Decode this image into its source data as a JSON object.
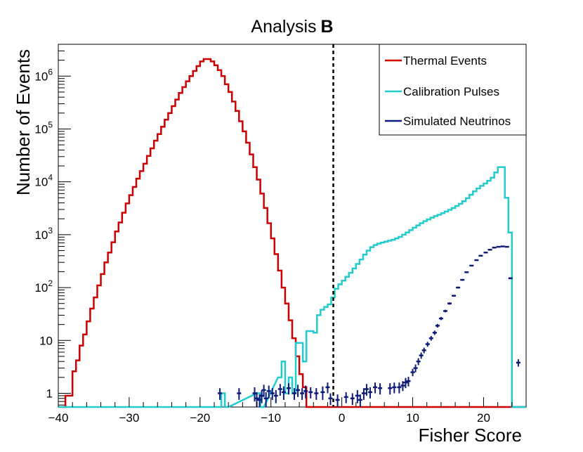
{
  "chart_data": {
    "type": "histogram",
    "title": {
      "main": "Analysis",
      "bold": "B"
    },
    "xlabel": "Fisher Score",
    "ylabel": "Number of Events",
    "xlim": [
      -40,
      26
    ],
    "ylim": [
      0.55,
      4000000
    ],
    "yscale": "log",
    "x_ticks": [
      {
        "value": -40,
        "label": "−40"
      },
      {
        "value": -30,
        "label": "−30"
      },
      {
        "value": -20,
        "label": "−20"
      },
      {
        "value": -10,
        "label": "−10"
      },
      {
        "value": 0,
        "label": "0"
      },
      {
        "value": 10,
        "label": "10"
      },
      {
        "value": 20,
        "label": "20"
      }
    ],
    "y_ticks": [
      {
        "value": 1,
        "base": "1",
        "exp": ""
      },
      {
        "value": 10,
        "base": "10",
        "exp": ""
      },
      {
        "value": 100,
        "base": "10",
        "exp": "2"
      },
      {
        "value": 1000,
        "base": "10",
        "exp": "3"
      },
      {
        "value": 10000,
        "base": "10",
        "exp": "4"
      },
      {
        "value": 100000,
        "base": "10",
        "exp": "5"
      },
      {
        "value": 1000000,
        "base": "10",
        "exp": "6"
      }
    ],
    "cut_line_x": -1.2,
    "legend_position": "top-right",
    "series": [
      {
        "name": "Thermal Events",
        "color": "#cc0000",
        "style": "step",
        "bins": [
          [
            -39.5,
            0.5
          ],
          [
            -39,
            0.9
          ],
          [
            -38.5,
            0.9
          ],
          [
            -38,
            2.6
          ],
          [
            -37.5,
            4.2
          ],
          [
            -37,
            8
          ],
          [
            -36.5,
            13
          ],
          [
            -36,
            23
          ],
          [
            -35.5,
            40
          ],
          [
            -35,
            65
          ],
          [
            -34.5,
            110
          ],
          [
            -34,
            180
          ],
          [
            -33.5,
            300
          ],
          [
            -33,
            460
          ],
          [
            -32.5,
            720
          ],
          [
            -32,
            1150
          ],
          [
            -31.5,
            1700
          ],
          [
            -31,
            2600
          ],
          [
            -30.5,
            3900
          ],
          [
            -30,
            5600
          ],
          [
            -29.5,
            8000
          ],
          [
            -29,
            11500
          ],
          [
            -28.5,
            16000
          ],
          [
            -28,
            22000
          ],
          [
            -27.5,
            31000
          ],
          [
            -27,
            43000
          ],
          [
            -26.5,
            60000
          ],
          [
            -26,
            80000
          ],
          [
            -25.5,
            110000
          ],
          [
            -25,
            150000
          ],
          [
            -24.5,
            200000
          ],
          [
            -24,
            270000
          ],
          [
            -23.5,
            360000
          ],
          [
            -23,
            480000
          ],
          [
            -22.5,
            620000
          ],
          [
            -22,
            800000
          ],
          [
            -21.5,
            1000000
          ],
          [
            -21,
            1250000
          ],
          [
            -20.5,
            1550000
          ],
          [
            -20,
            1900000
          ],
          [
            -19.5,
            2100000
          ],
          [
            -19,
            2100000
          ],
          [
            -18.5,
            1900000
          ],
          [
            -18,
            1600000
          ],
          [
            -17.5,
            1300000
          ],
          [
            -17,
            1000000
          ],
          [
            -16.5,
            700000
          ],
          [
            -16,
            500000
          ],
          [
            -15.5,
            330000
          ],
          [
            -15,
            220000
          ],
          [
            -14.5,
            140000
          ],
          [
            -14,
            90000
          ],
          [
            -13.5,
            55000
          ],
          [
            -13,
            33000
          ],
          [
            -12.5,
            19000
          ],
          [
            -12,
            11000
          ],
          [
            -11.5,
            6000
          ],
          [
            -11,
            3200
          ],
          [
            -10.5,
            1650
          ],
          [
            -10,
            850
          ],
          [
            -9.5,
            430
          ],
          [
            -9,
            210
          ],
          [
            -8.5,
            100
          ],
          [
            -8,
            50
          ],
          [
            -7.5,
            24
          ],
          [
            -7,
            11
          ],
          [
            -6.5,
            5
          ],
          [
            -6,
            2.3
          ],
          [
            -5.5,
            1.3
          ],
          [
            -5,
            0.5
          ],
          [
            -4.5,
            0.5
          ],
          [
            -4,
            0.5
          ],
          [
            -3.5,
            0.5
          ],
          [
            -3,
            0.5
          ],
          [
            -2.5,
            0.5
          ],
          [
            -2,
            0.5
          ],
          [
            -1.5,
            0.5
          ],
          [
            -1,
            0.5
          ],
          [
            -0.5,
            0.5
          ],
          [
            0,
            0.5
          ],
          [
            0.5,
            0.5
          ],
          [
            1,
            0.5
          ],
          [
            1.5,
            0.5
          ],
          [
            2,
            0.5
          ],
          [
            2.5,
            0.5
          ],
          [
            3,
            0.5
          ],
          [
            3.5,
            0.5
          ],
          [
            4,
            0.5
          ],
          [
            4.5,
            0.5
          ],
          [
            5,
            0.5
          ],
          [
            5.5,
            0.5
          ],
          [
            6,
            0.5
          ],
          [
            6.5,
            0.5
          ],
          [
            7,
            0.5
          ],
          [
            7.5,
            0.5
          ],
          [
            8,
            0.5
          ],
          [
            8.5,
            0.5
          ],
          [
            9,
            0.5
          ],
          [
            9.5,
            0.5
          ],
          [
            10,
            0.5
          ],
          [
            10.5,
            0.5
          ],
          [
            11,
            0.5
          ],
          [
            11.5,
            0.5
          ],
          [
            12,
            0.5
          ],
          [
            12.5,
            0.5
          ],
          [
            13,
            0.5
          ],
          [
            13.5,
            0.5
          ],
          [
            14,
            0.5
          ],
          [
            14.5,
            0.5
          ],
          [
            15,
            0.5
          ],
          [
            15.5,
            0.5
          ],
          [
            16,
            0.5
          ],
          [
            16.5,
            0.5
          ],
          [
            17,
            0.5
          ],
          [
            17.5,
            0.5
          ],
          [
            18,
            0.5
          ],
          [
            18.5,
            0.5
          ],
          [
            19,
            0.5
          ],
          [
            19.5,
            0.5
          ],
          [
            20,
            0.5
          ],
          [
            20.5,
            0.5
          ],
          [
            21,
            0.5
          ],
          [
            21.5,
            0.5
          ],
          [
            22,
            0.5
          ],
          [
            22.5,
            0.5
          ],
          [
            23,
            0.5
          ],
          [
            23.5,
            0.5
          ],
          [
            24,
            0.5
          ],
          [
            24.5,
            0.5
          ],
          [
            25,
            0.5
          ],
          [
            25.5,
            0.5
          ]
        ],
        "bin_width": 0.5
      },
      {
        "name": "Calibration Pulses",
        "color": "#22cccc",
        "style": "step",
        "bins": [
          [
            -40,
            0.5
          ],
          [
            -17.5,
            0.5
          ],
          [
            -17,
            1
          ],
          [
            -16.5,
            0.5
          ],
          [
            -12,
            1
          ],
          [
            -11.5,
            0.5
          ],
          [
            -9,
            2
          ],
          [
            -8.5,
            4
          ],
          [
            -8,
            1
          ],
          [
            -7.5,
            2
          ],
          [
            -7,
            1
          ],
          [
            -6.5,
            9
          ],
          [
            -6,
            9
          ],
          [
            -5.5,
            4
          ],
          [
            -5,
            15
          ],
          [
            -4.5,
            15
          ],
          [
            -4,
            14
          ],
          [
            -3.5,
            30
          ],
          [
            -3,
            38
          ],
          [
            -2.5,
            43
          ],
          [
            -2,
            48
          ],
          [
            -1.5,
            65
          ],
          [
            -1,
            95
          ],
          [
            -0.5,
            115
          ],
          [
            0,
            135
          ],
          [
            0.5,
            160
          ],
          [
            1,
            190
          ],
          [
            1.5,
            230
          ],
          [
            2,
            280
          ],
          [
            2.5,
            340
          ],
          [
            3,
            420
          ],
          [
            3.5,
            500
          ],
          [
            4,
            580
          ],
          [
            4.5,
            640
          ],
          [
            5,
            680
          ],
          [
            5.5,
            710
          ],
          [
            6,
            740
          ],
          [
            6.5,
            770
          ],
          [
            7,
            800
          ],
          [
            7.5,
            850
          ],
          [
            8,
            910
          ],
          [
            8.5,
            1000
          ],
          [
            9,
            1100
          ],
          [
            9.5,
            1220
          ],
          [
            10,
            1360
          ],
          [
            10.5,
            1500
          ],
          [
            11,
            1650
          ],
          [
            11.5,
            1800
          ],
          [
            12,
            1950
          ],
          [
            12.5,
            2100
          ],
          [
            13,
            2250
          ],
          [
            13.5,
            2380
          ],
          [
            14,
            2550
          ],
          [
            14.5,
            2750
          ],
          [
            15,
            2950
          ],
          [
            15.5,
            3200
          ],
          [
            16,
            3500
          ],
          [
            16.5,
            3850
          ],
          [
            17,
            4300
          ],
          [
            17.5,
            4900
          ],
          [
            18,
            5700
          ],
          [
            18.5,
            6600
          ],
          [
            19,
            7500
          ],
          [
            19.5,
            8400
          ],
          [
            20,
            9300
          ],
          [
            20.5,
            10500
          ],
          [
            21,
            12000
          ],
          [
            21.5,
            15000
          ],
          [
            22,
            19000
          ],
          [
            22.5,
            19000
          ],
          [
            23,
            5000
          ],
          [
            23.5,
            1100
          ],
          [
            24,
            0.5
          ],
          [
            24.5,
            0.5
          ],
          [
            25,
            0.5
          ],
          [
            25.5,
            0.5
          ]
        ],
        "bin_width": 0.5
      },
      {
        "name": "Simulated Neutrinos",
        "color": "#0c1a78",
        "style": "points-with-errors",
        "points": [
          [
            -17.2,
            1.0,
            0.25
          ],
          [
            -14.5,
            1.0,
            0.25
          ],
          [
            -12.3,
            1.0,
            0.3
          ],
          [
            -12.0,
            0.8,
            0.25
          ],
          [
            -11.6,
            0.75,
            0.2
          ],
          [
            -11.3,
            0.9,
            0.25
          ],
          [
            -11.0,
            1.15,
            0.3
          ],
          [
            -10.7,
            0.8,
            0.25
          ],
          [
            -10.3,
            1.1,
            0.3
          ],
          [
            -9.8,
            1.0,
            0.25
          ],
          [
            -9.3,
            0.9,
            0.25
          ],
          [
            -8.7,
            1.2,
            0.3
          ],
          [
            -8.2,
            1.05,
            0.3
          ],
          [
            -7.5,
            1.25,
            0.3
          ],
          [
            -6.7,
            1.0,
            0.25
          ],
          [
            -6.2,
            1.15,
            0.3
          ],
          [
            -5.6,
            1.0,
            0.25
          ],
          [
            -5.1,
            1.1,
            0.3
          ],
          [
            -4.4,
            1.05,
            0.25
          ],
          [
            -3.6,
            1.0,
            0.25
          ],
          [
            -2.7,
            1.05,
            0.3
          ],
          [
            -2.0,
            1.3,
            0.3
          ],
          [
            -1.6,
            0.8,
            0.2
          ],
          [
            -0.6,
            0.75,
            0.2
          ],
          [
            0.6,
            0.85,
            0.2
          ],
          [
            1.5,
            0.8,
            0.2
          ],
          [
            2.2,
            0.9,
            0.25
          ],
          [
            2.6,
            0.75,
            0.2
          ],
          [
            3.1,
            1.0,
            0.25
          ],
          [
            3.5,
            1.2,
            0.3
          ],
          [
            4.0,
            1.05,
            0.25
          ],
          [
            4.7,
            1.3,
            0.3
          ],
          [
            5.4,
            1.25,
            0.3
          ],
          [
            6.8,
            1.25,
            0.3
          ],
          [
            7.4,
            1.3,
            0.3
          ],
          [
            8.1,
            1.3,
            0.3
          ],
          [
            8.6,
            1.4,
            0.3
          ],
          [
            9.0,
            1.6,
            0.35
          ],
          [
            9.4,
            1.7,
            0.35
          ],
          [
            10.0,
            2.5,
            0.4
          ],
          [
            10.4,
            3.0,
            0.5
          ],
          [
            10.8,
            4.0,
            0.6
          ],
          [
            11.2,
            5.2,
            0.7
          ],
          [
            11.6,
            6.5,
            0.8
          ],
          [
            12.1,
            8.5,
            0.9
          ],
          [
            12.6,
            11,
            1.1
          ],
          [
            13.1,
            14,
            1.3
          ],
          [
            13.5,
            19,
            1.5
          ],
          [
            14.0,
            26,
            1.8
          ],
          [
            14.6,
            36,
            2.0
          ],
          [
            15.2,
            50,
            2.5
          ],
          [
            15.8,
            70,
            3
          ],
          [
            16.4,
            100,
            4
          ],
          [
            17.0,
            140,
            5
          ],
          [
            17.6,
            195,
            6
          ],
          [
            18.3,
            260,
            7
          ],
          [
            19.0,
            330,
            8
          ],
          [
            19.6,
            400,
            9
          ],
          [
            20.3,
            460,
            10
          ],
          [
            20.9,
            520,
            11
          ],
          [
            21.5,
            570,
            12
          ],
          [
            22.1,
            590,
            12
          ],
          [
            22.7,
            600,
            12
          ],
          [
            23.3,
            590,
            12
          ],
          [
            23.8,
            150,
            6
          ],
          [
            24.9,
            3.8,
            0.6
          ]
        ]
      }
    ]
  }
}
